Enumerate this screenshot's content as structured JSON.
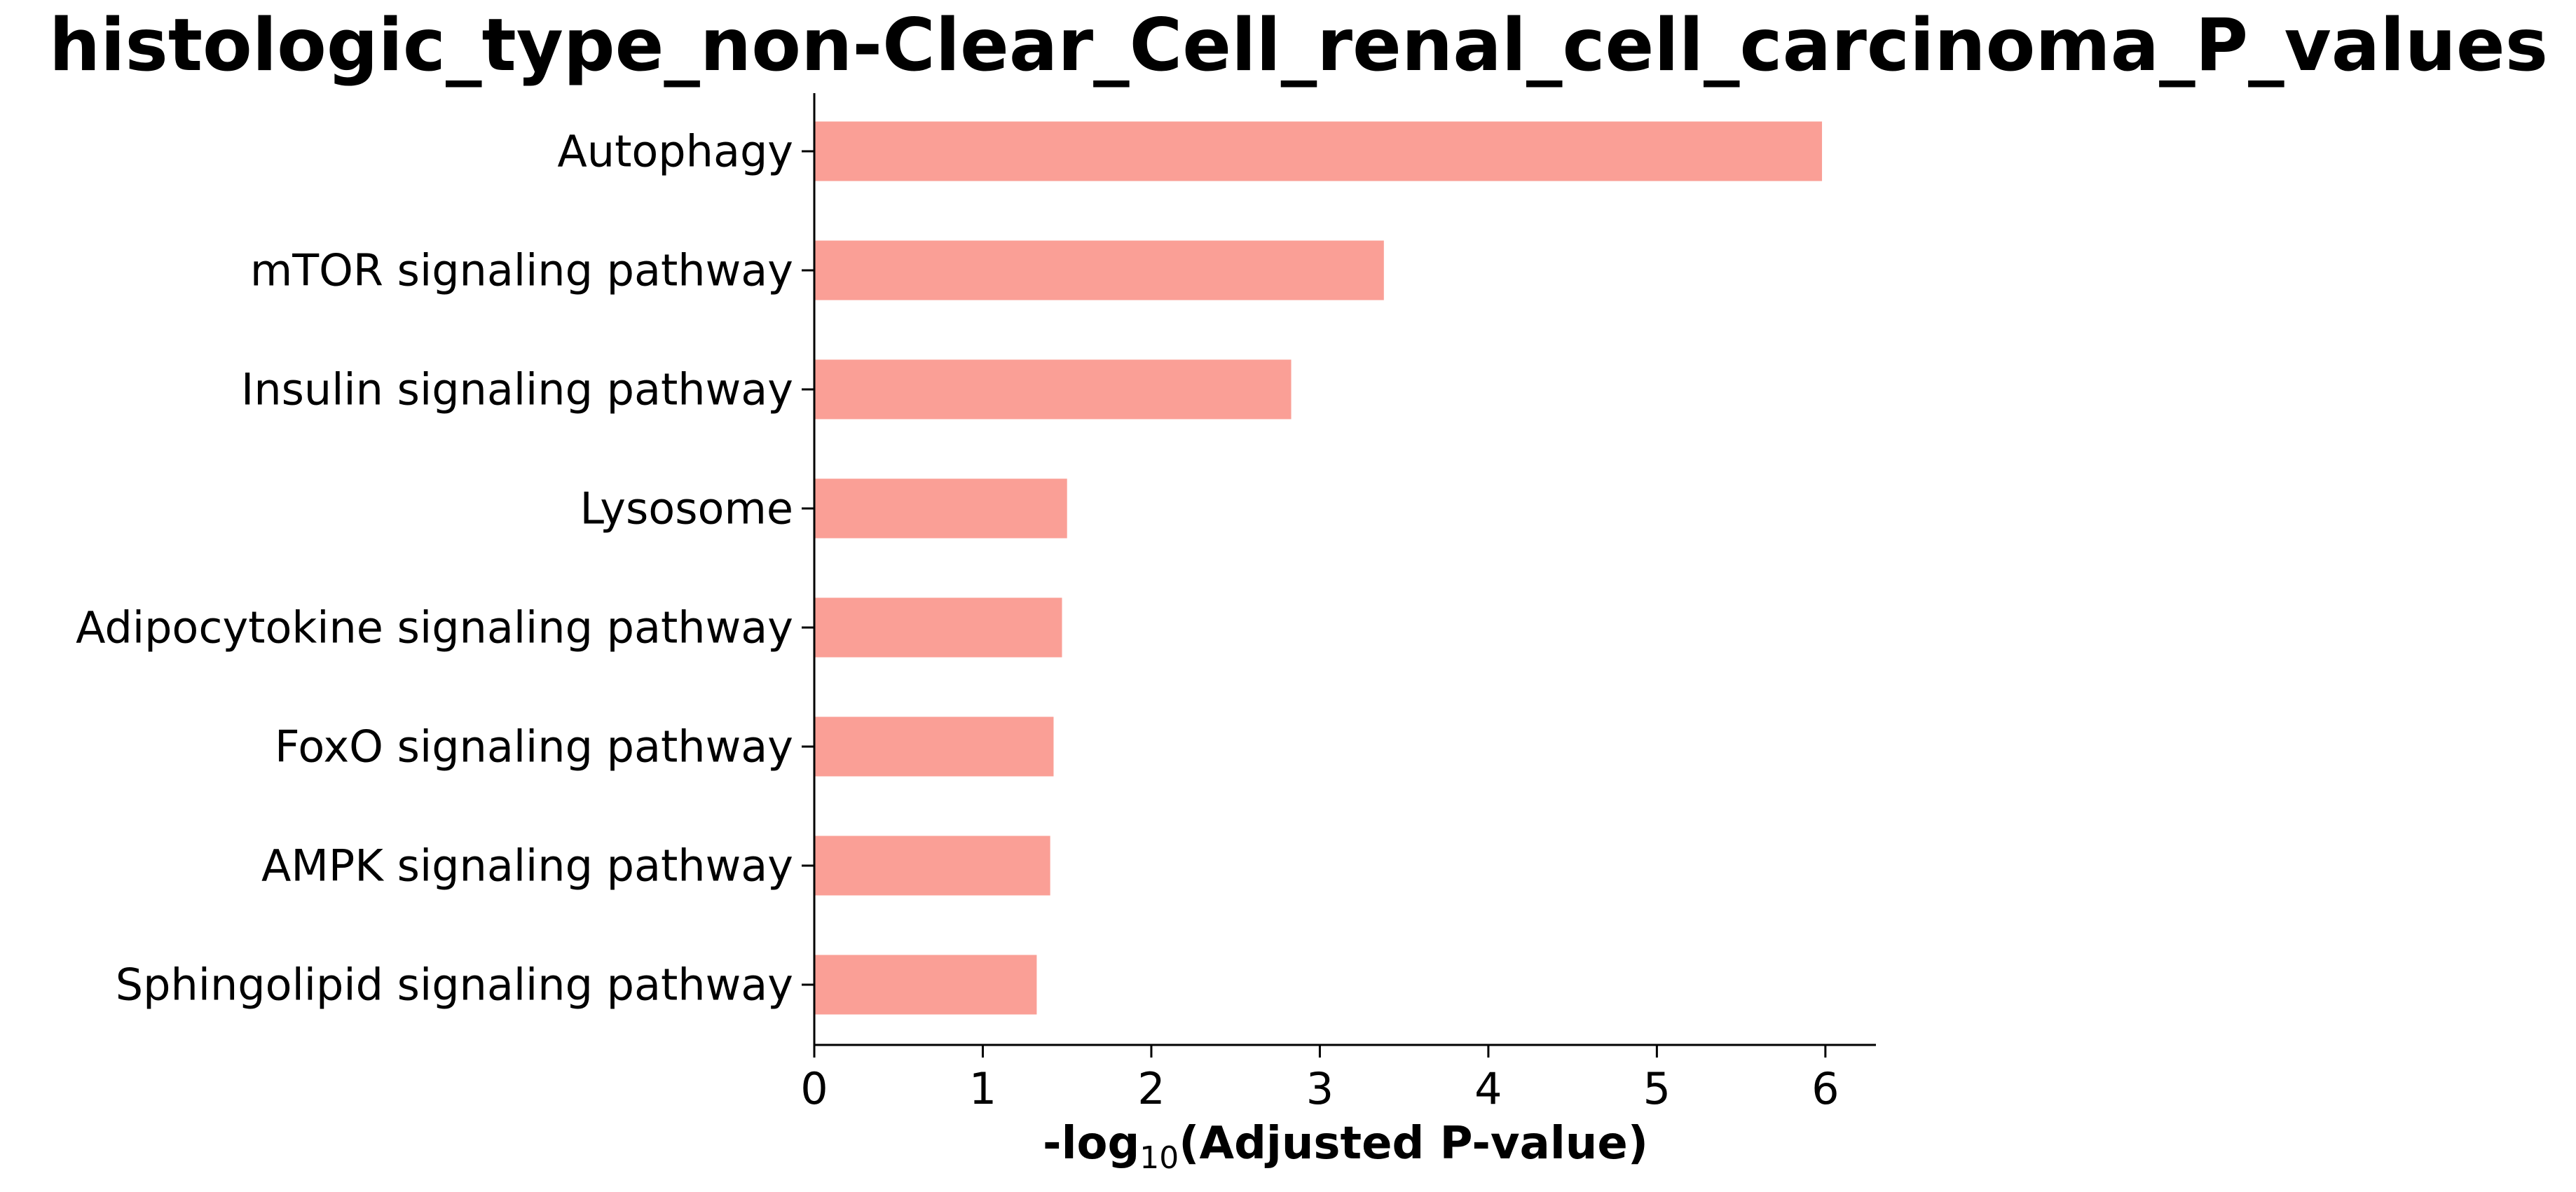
{
  "chart_data": {
    "type": "bar",
    "orientation": "horizontal",
    "title": "histologic_type_non-Clear_Cell_renal_cell_carcinoma_P_values",
    "xlabel": {
      "prefix": "-log",
      "subscript": "10",
      "suffix": "(Adjusted P-value)"
    },
    "ylabel": "",
    "categories": [
      "Autophagy",
      "mTOR signaling pathway",
      "Insulin signaling pathway",
      "Lysosome",
      "Adipocytokine signaling pathway",
      "FoxO signaling pathway",
      "AMPK signaling pathway",
      "Sphingolipid signaling pathway"
    ],
    "values": [
      5.98,
      3.38,
      2.83,
      1.5,
      1.47,
      1.42,
      1.4,
      1.32
    ],
    "xlim": [
      0,
      6.3
    ],
    "xticks": [
      0,
      1,
      2,
      3,
      4,
      5,
      6
    ],
    "bar_color": "#fa9f96",
    "grid": false,
    "legend": "none"
  }
}
